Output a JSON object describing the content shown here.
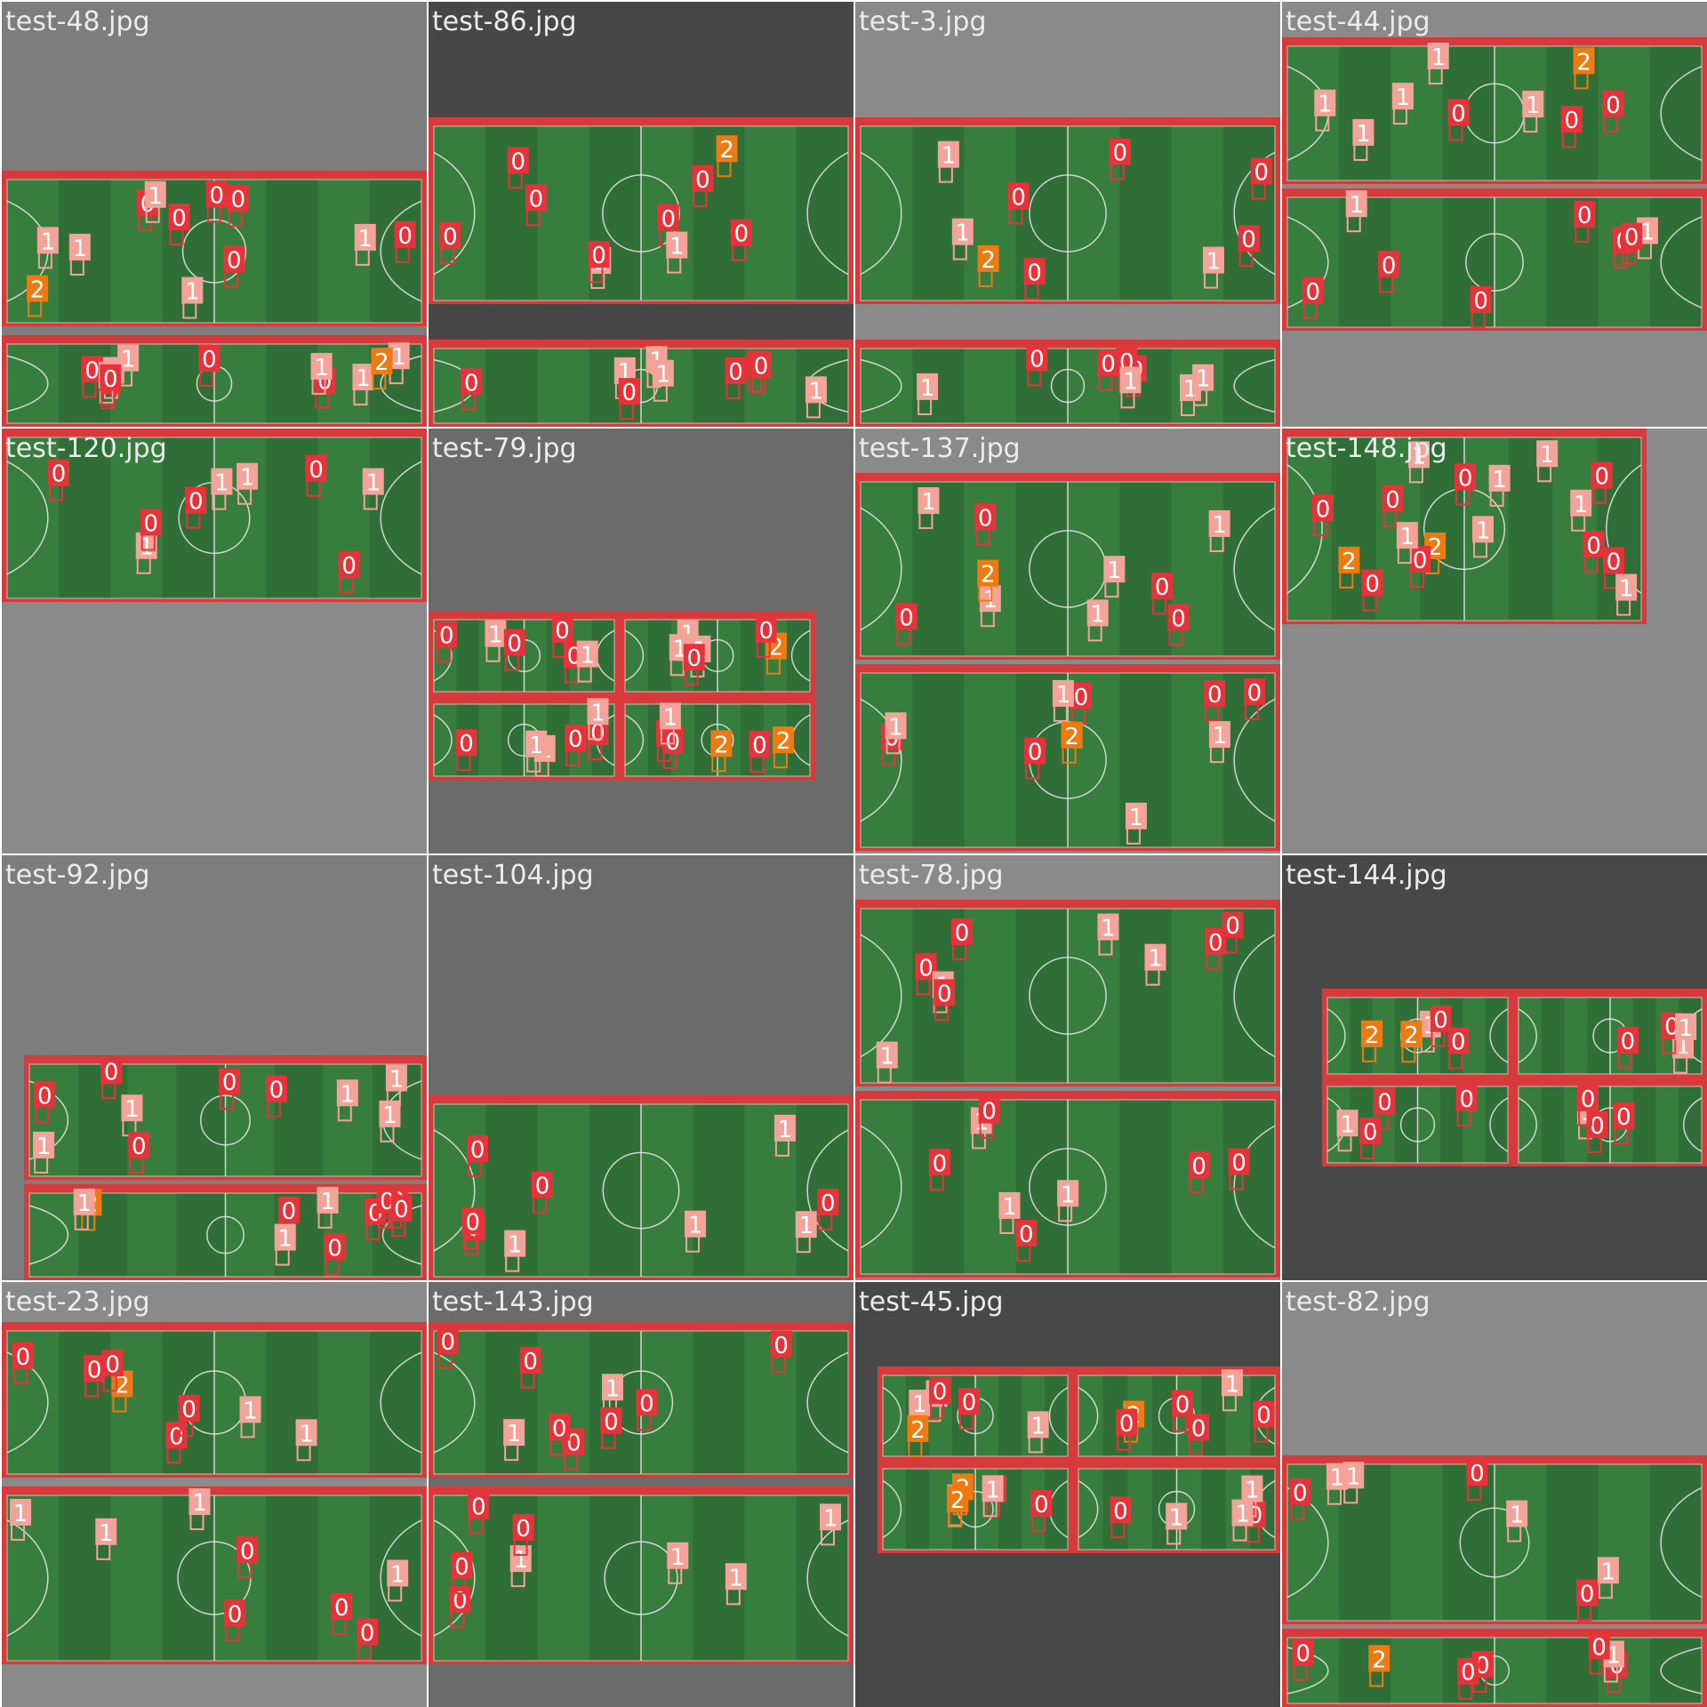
{
  "mosaic": {
    "tiles": [
      {
        "title": "test-48.jpg",
        "bg": "#7d7d7d",
        "variant": "strip-two",
        "labels": [
          "0",
          "1",
          "0",
          "1",
          "0",
          "0",
          "1",
          "0",
          "1",
          "0",
          "2",
          "1",
          "1",
          "0",
          "0",
          "1",
          "0",
          "1",
          "0",
          "1",
          "1",
          "2",
          "1",
          "0"
        ]
      },
      {
        "title": "test-86.jpg",
        "bg": "#474747",
        "variant": "wide",
        "labels": [
          "1",
          "1",
          "0",
          "0",
          "0",
          "0",
          "0",
          "1",
          "0",
          "0",
          "0",
          "1",
          "2",
          "0",
          "0",
          "0",
          "1",
          "1",
          "0"
        ]
      },
      {
        "title": "test-3.jpg",
        "bg": "#8a8a8a",
        "variant": "wide",
        "labels": [
          "1",
          "0",
          "0",
          "0",
          "0",
          "1",
          "2",
          "1",
          "1",
          "0",
          "0",
          "1",
          "0",
          "0",
          "0",
          "1",
          "1"
        ]
      },
      {
        "title": "test-44.jpg",
        "bg": "#8a8a8a",
        "variant": "top-two",
        "labels": [
          "1",
          "1",
          "0",
          "0",
          "1",
          "0",
          "0",
          "1",
          "2",
          "0",
          "1",
          "0",
          "1",
          "0",
          "1",
          "0",
          "0"
        ]
      },
      {
        "title": "test-120.jpg",
        "bg": "#8a8a8a",
        "variant": "top-short",
        "labels": [
          "1",
          "0",
          "0",
          "1",
          "0",
          "0",
          "1",
          "0",
          "1"
        ]
      },
      {
        "title": "test-79.jpg",
        "bg": "#6b6b6b",
        "variant": "quad",
        "labels": [
          "0",
          "1",
          "0",
          "0",
          "1",
          "2",
          "1",
          "0",
          "0",
          "1",
          "0",
          "2",
          "0",
          "1",
          "1",
          "0",
          "0",
          "0",
          "1",
          "2",
          "1",
          "0",
          "0",
          "1"
        ]
      },
      {
        "title": "test-137.jpg",
        "bg": "#8a8a8a",
        "variant": "two-stacked",
        "labels": [
          "1",
          "0",
          "1",
          "0",
          "1",
          "0",
          "0",
          "1",
          "2",
          "0",
          "1",
          "1",
          "0",
          "1",
          "0",
          "0",
          "1",
          "2",
          "0",
          "1"
        ]
      },
      {
        "title": "test-148.jpg",
        "bg": "#8a8a8a",
        "variant": "top-short-right",
        "labels": [
          "2",
          "1",
          "0",
          "0",
          "0",
          "0",
          "1",
          "0",
          "2",
          "1",
          "1",
          "0",
          "1",
          "0",
          "1",
          "1",
          "0"
        ]
      },
      {
        "title": "test-92.jpg",
        "bg": "#7d7d7d",
        "variant": "bottom-two",
        "labels": [
          "1",
          "0",
          "0",
          "1",
          "0",
          "0",
          "1",
          "0",
          "1",
          "2",
          "0",
          "1",
          "0",
          "1",
          "0",
          "0",
          "1",
          "0",
          "1",
          "0"
        ]
      },
      {
        "title": "test-104.jpg",
        "bg": "#6b6b6b",
        "variant": "bottom-one",
        "labels": [
          "0",
          "1",
          "0",
          "1",
          "0",
          "1",
          "0",
          "0",
          "1"
        ]
      },
      {
        "title": "test-78.jpg",
        "bg": "#8a8a8a",
        "variant": "two-stacked",
        "labels": [
          "0",
          "0",
          "0",
          "1",
          "0",
          "0",
          "1",
          "1",
          "1",
          "0",
          "0",
          "0",
          "0",
          "1",
          "1",
          "0",
          "1"
        ]
      },
      {
        "title": "test-144.jpg",
        "bg": "#484848",
        "variant": "mid-quad",
        "labels": [
          "0",
          "0",
          "0",
          "1",
          "2",
          "1",
          "0",
          "0",
          "1",
          "0",
          "1",
          "0",
          "2",
          "1",
          "0",
          "0",
          "0"
        ]
      },
      {
        "title": "test-23.jpg",
        "bg": "#8a8a8a",
        "variant": "two-stacked-top",
        "labels": [
          "1",
          "0",
          "2",
          "1",
          "0",
          "1",
          "0",
          "0",
          "0",
          "1",
          "0",
          "1",
          "1",
          "0",
          "0",
          "0"
        ]
      },
      {
        "title": "test-143.jpg",
        "bg": "#6b6b6b",
        "variant": "two-stacked-top",
        "labels": [
          "1",
          "0",
          "0",
          "0",
          "1",
          "1",
          "0",
          "1",
          "0",
          "0",
          "0",
          "1",
          "0",
          "0",
          "0",
          "1",
          "0"
        ]
      },
      {
        "title": "test-45.jpg",
        "bg": "#484848",
        "variant": "quad-right",
        "labels": [
          "1",
          "2",
          "1",
          "0",
          "1",
          "0",
          "0",
          "1",
          "2",
          "0",
          "1",
          "0",
          "0",
          "1",
          "2",
          "1",
          "0",
          "0",
          "0",
          "1",
          "1",
          "0",
          "2"
        ]
      },
      {
        "title": "test-82.jpg",
        "bg": "#8a8a8a",
        "variant": "bottom-two-tall",
        "labels": [
          "1",
          "0",
          "0",
          "0",
          "1",
          "0",
          "0",
          "1",
          "0",
          "2",
          "1",
          "0",
          "1",
          "0"
        ]
      }
    ]
  },
  "palette": {
    "class0": "#e8323a",
    "class1": "#f3a39a",
    "class2": "#ee7a12",
    "pitch_dark": "#2f6e37",
    "pitch_light": "#3e8a45",
    "pitch_border": "#d63a3a",
    "line": "#e9e9e9"
  }
}
